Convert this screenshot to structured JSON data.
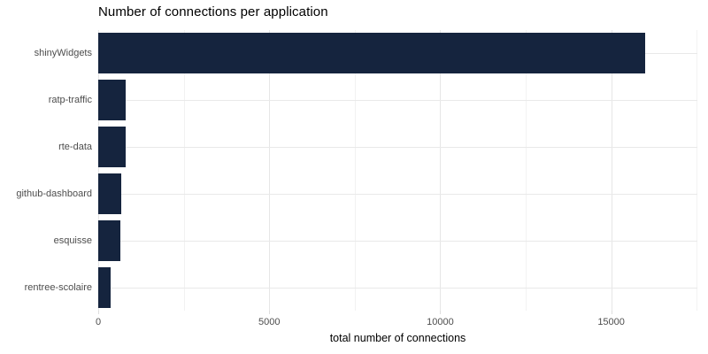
{
  "chart_data": {
    "type": "bar",
    "orientation": "horizontal",
    "title": "Number of connections per application",
    "xlabel": "total number of connections",
    "ylabel": "",
    "categories": [
      "shinyWidgets",
      "ratp-traffic",
      "rte-data",
      "github-dashboard",
      "esquisse",
      "rentree-scolaire"
    ],
    "values": [
      16000,
      800,
      790,
      670,
      650,
      350
    ],
    "xlim": [
      0,
      17520
    ],
    "x_major_ticks": [
      0,
      5000,
      10000,
      15000
    ],
    "x_minor_ticks": [
      2500,
      7500,
      12500,
      17500
    ],
    "grid": "on",
    "legend": "none"
  },
  "colors": {
    "bar": "#15243E",
    "grid_major": "#e6e6e6",
    "grid_minor": "#f2f2f2",
    "tick_label": "#4d4d4d",
    "title": "#000000",
    "background": "#ffffff"
  }
}
